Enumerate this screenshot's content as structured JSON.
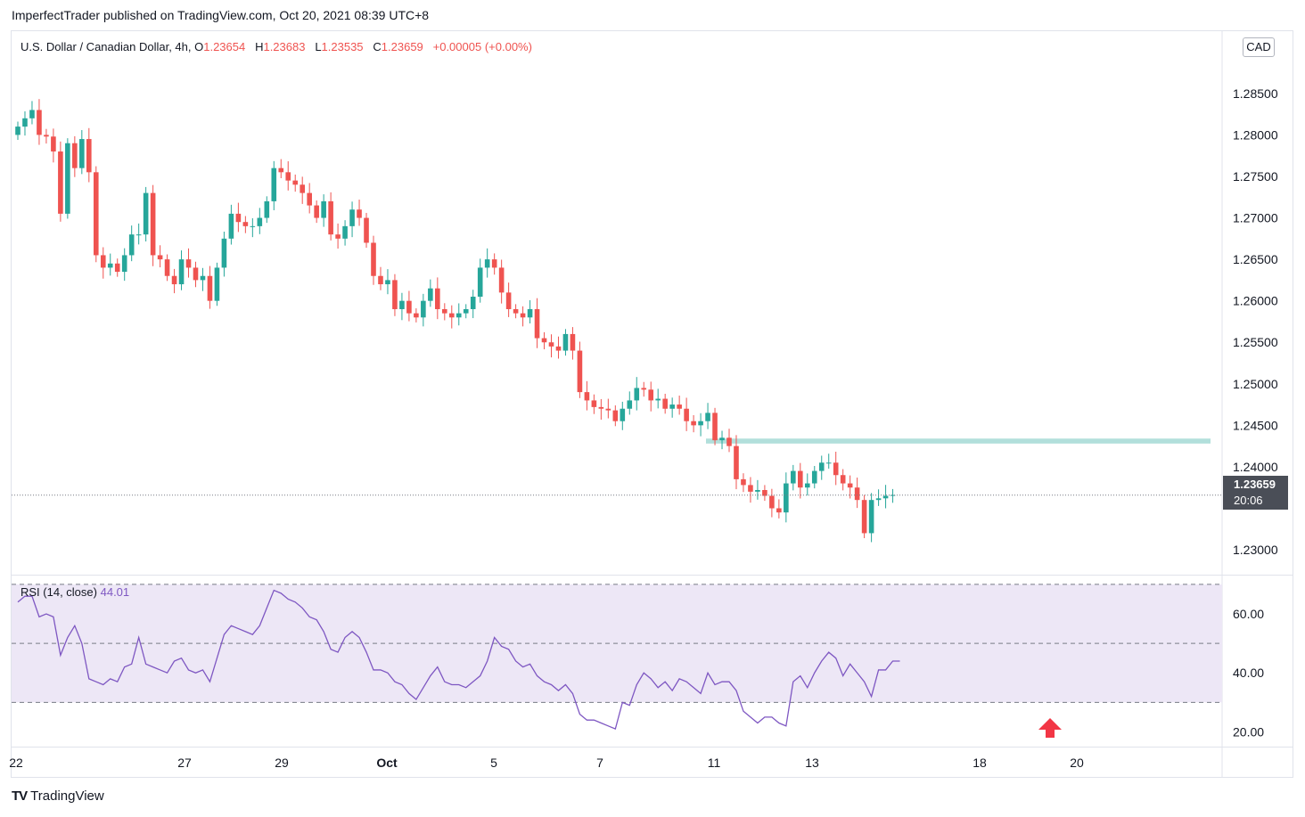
{
  "publisher_line": "ImperfectTrader published on TradingView.com, Oct 20, 2021 08:39 UTC+8",
  "legend": {
    "symbol": "U.S. Dollar / Canadian Dollar, 4h,",
    "open_label": "O",
    "open": "1.23654",
    "high_label": "H",
    "high": "1.23683",
    "low_label": "L",
    "low": "1.23535",
    "close_label": "C",
    "close": "1.23659",
    "change": "+0.00005 (+0.00%)"
  },
  "currency_badge": "CAD",
  "price_tag": {
    "price": "1.23659",
    "countdown": "20:06"
  },
  "rsi_legend": {
    "label": "RSI (14, close)",
    "value": "44.01"
  },
  "footer": {
    "logo": "TV",
    "brand": "TradingView"
  },
  "colors": {
    "up": "#26a69a",
    "down": "#ef5350",
    "rsi": "#7e57c2",
    "rsi_band": "#ede7f6",
    "support": "#b2dfdb",
    "arrow": "#f23645"
  },
  "chart_data": [
    {
      "type": "candlestick",
      "title": "U.S. Dollar / Canadian Dollar, 4h",
      "y_ticks": [
        "1.28500",
        "1.28000",
        "1.27500",
        "1.27000",
        "1.26500",
        "1.26000",
        "1.25500",
        "1.25000",
        "1.24500",
        "1.24000",
        "1.23000"
      ],
      "ylim": [
        1.227,
        1.2925
      ],
      "x_ticks": [
        "22",
        "27",
        "29",
        "Oct",
        "5",
        "7",
        "11",
        "13",
        "18",
        "20"
      ],
      "support_zone": [
        1.2428,
        1.2434
      ],
      "last_price": 1.23659,
      "closes": [
        1.281,
        1.282,
        1.283,
        1.28,
        1.2798,
        1.278,
        1.2705,
        1.279,
        1.276,
        1.2795,
        1.2755,
        1.2655,
        1.264,
        1.2645,
        1.2635,
        1.2655,
        1.268,
        1.268,
        1.273,
        1.2655,
        1.265,
        1.263,
        1.262,
        1.265,
        1.264,
        1.2625,
        1.263,
        1.26,
        1.264,
        1.2675,
        1.2705,
        1.2695,
        1.269,
        1.269,
        1.27,
        1.272,
        1.276,
        1.2755,
        1.2745,
        1.274,
        1.273,
        1.2715,
        1.27,
        1.272,
        1.268,
        1.2675,
        1.269,
        1.271,
        1.27,
        1.267,
        1.263,
        1.262,
        1.2625,
        1.259,
        1.26,
        1.2585,
        1.258,
        1.26,
        1.2615,
        1.259,
        1.2585,
        1.258,
        1.2585,
        1.259,
        1.2605,
        1.264,
        1.265,
        1.264,
        1.261,
        1.259,
        1.2585,
        1.258,
        1.259,
        1.2555,
        1.255,
        1.2545,
        1.254,
        1.256,
        1.254,
        1.249,
        1.248,
        1.2472,
        1.247,
        1.2468,
        1.2455,
        1.247,
        1.248,
        1.2495,
        1.2493,
        1.248,
        1.2482,
        1.247,
        1.2475,
        1.247,
        1.2455,
        1.245,
        1.2455,
        1.2465,
        1.2432,
        1.2435,
        1.2425,
        1.2385,
        1.2378,
        1.237,
        1.2372,
        1.2365,
        1.235,
        1.2345,
        1.238,
        1.2395,
        1.2375,
        1.238,
        1.2395,
        1.2405,
        1.2405,
        1.239,
        1.238,
        1.2375,
        1.236,
        1.232,
        1.236,
        1.2362,
        1.2365,
        1.2366
      ],
      "ohlc_note": "open = previous close"
    },
    {
      "type": "line",
      "title": "RSI (14, close)",
      "y_ticks": [
        "60.00",
        "40.00",
        "20.00"
      ],
      "ylim": [
        15,
        73
      ],
      "bands": [
        70,
        50,
        30
      ],
      "values": [
        64,
        66,
        66,
        59,
        60,
        59,
        46,
        52,
        56,
        50,
        38,
        37,
        36,
        38,
        37,
        42,
        43,
        52,
        43,
        42,
        41,
        40,
        44,
        45,
        41,
        40,
        41,
        37,
        45,
        53,
        56,
        55,
        54,
        53,
        56,
        62,
        68,
        67,
        65,
        64,
        62,
        59,
        58,
        54,
        48,
        47,
        52,
        54,
        52,
        47,
        41,
        41,
        40,
        37,
        36,
        33,
        31,
        35,
        39,
        42,
        37,
        36,
        36,
        35,
        37,
        39,
        44,
        52,
        49,
        48,
        44,
        42,
        43,
        39,
        37,
        36,
        34,
        36,
        33,
        26,
        24,
        24,
        23,
        22,
        21,
        30,
        29,
        36,
        40,
        38,
        35,
        37,
        34,
        38,
        37,
        35,
        33,
        40,
        36,
        37,
        37,
        34,
        27,
        25,
        23,
        25,
        25,
        23,
        22,
        37,
        39,
        35,
        40,
        44,
        47,
        45,
        39,
        43,
        40,
        37,
        32,
        41,
        41,
        44,
        44
      ]
    }
  ]
}
